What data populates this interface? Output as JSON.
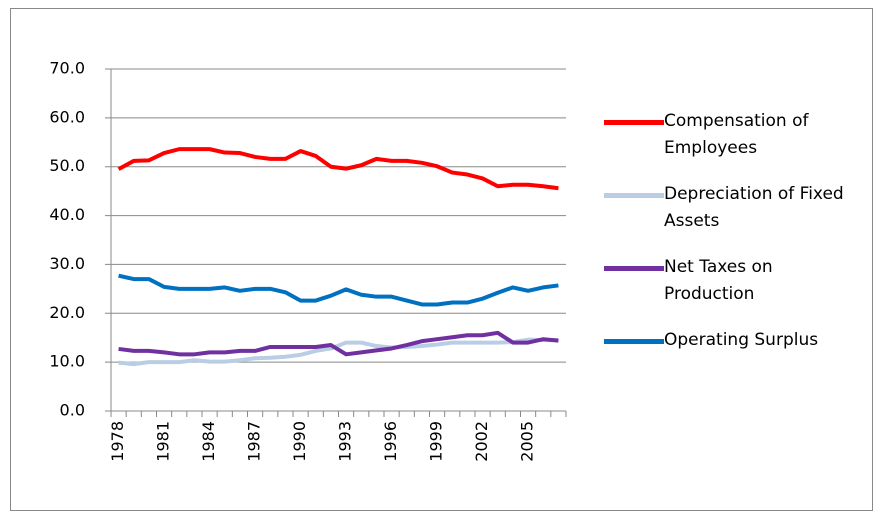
{
  "chart_data": {
    "type": "line",
    "categories": [
      "1978",
      null,
      null,
      "1981",
      null,
      null,
      "1984",
      null,
      null,
      "1987",
      null,
      null,
      "1990",
      null,
      null,
      "1993",
      null,
      null,
      "1996",
      null,
      null,
      "1999",
      null,
      null,
      "2002",
      null,
      null,
      "2005",
      null,
      null
    ],
    "series": [
      {
        "name": "Compensation of Employees",
        "color": "#ff0000",
        "values": [
          49.5,
          51.2,
          51.3,
          52.8,
          53.6,
          53.6,
          53.6,
          52.9,
          52.8,
          52.0,
          51.6,
          51.6,
          53.2,
          52.2,
          50.0,
          49.6,
          50.3,
          51.6,
          51.2,
          51.2,
          50.8,
          50.1,
          48.8,
          48.4,
          47.6,
          46.0,
          46.3,
          46.3,
          46.0,
          45.6
        ]
      },
      {
        "name": "Depreciation of Fixed Assets",
        "color": "#b9cde5",
        "values": [
          9.9,
          9.6,
          10.0,
          10.0,
          10.0,
          10.4,
          10.1,
          10.1,
          10.4,
          10.8,
          10.9,
          11.1,
          11.5,
          12.3,
          12.8,
          14.0,
          14.0,
          13.3,
          13.0,
          13.1,
          13.3,
          13.6,
          14.0,
          14.0,
          14.0,
          14.0,
          14.1,
          14.6,
          14.5,
          14.5
        ]
      },
      {
        "name": "Net Taxes on Production",
        "color": "#7030a0",
        "values": [
          12.7,
          12.3,
          12.3,
          12.0,
          11.6,
          11.6,
          12.0,
          12.0,
          12.3,
          12.3,
          13.1,
          13.1,
          13.1,
          13.1,
          13.5,
          11.6,
          12.0,
          12.4,
          12.8,
          13.5,
          14.3,
          14.7,
          15.1,
          15.5,
          15.5,
          16.0,
          14.0,
          14.0,
          14.7,
          14.4
        ]
      },
      {
        "name": "Operating Surplus",
        "color": "#0070c0",
        "values": [
          27.7,
          27.0,
          27.0,
          25.4,
          25.0,
          25.0,
          25.0,
          25.3,
          24.6,
          25.0,
          25.0,
          24.3,
          22.6,
          22.6,
          23.6,
          24.9,
          23.8,
          23.4,
          23.4,
          22.6,
          21.8,
          21.8,
          22.2,
          22.2,
          23.0,
          24.2,
          25.3,
          24.6,
          25.3,
          25.7
        ]
      }
    ],
    "ylim": [
      0,
      70
    ],
    "yticks": [
      {
        "value": 0,
        "label": "0.0"
      },
      {
        "value": 10,
        "label": "10.0"
      },
      {
        "value": 20,
        "label": "20.0"
      },
      {
        "value": 30,
        "label": "30.0"
      },
      {
        "value": 40,
        "label": "40.0"
      },
      {
        "value": 50,
        "label": "50.0"
      },
      {
        "value": 60,
        "label": "60.0"
      },
      {
        "value": 70,
        "label": "70.0"
      }
    ],
    "grid": true,
    "legend": "right"
  }
}
